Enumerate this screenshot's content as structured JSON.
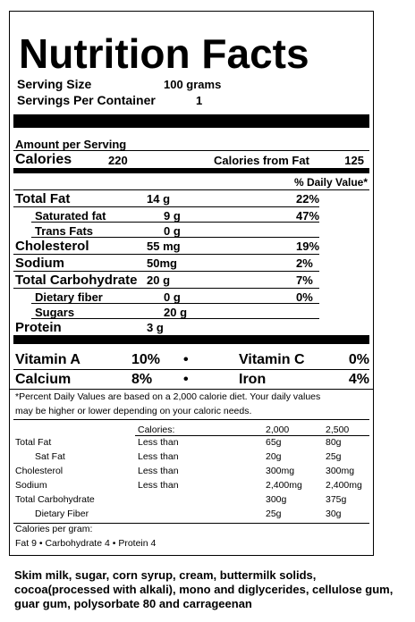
{
  "title": "Nutrition Facts",
  "serving": [
    {
      "label": "Serving Size",
      "value": "100 grams"
    },
    {
      "label": "Servings Per Container",
      "value": "1"
    }
  ],
  "amount_per_serving": "Amount per Serving",
  "calories": {
    "label": "Calories",
    "value": "220",
    "fat_label": "Calories from Fat",
    "fat_value": "125"
  },
  "daily_value_header": "% Daily Value*",
  "nutrients": [
    {
      "label": "Total Fat",
      "amount": "14 g",
      "dv": "22%",
      "sub": [
        {
          "label": "Saturated fat",
          "amount": "9 g",
          "dv": "47%"
        },
        {
          "label": "Trans Fats",
          "amount": "0 g"
        }
      ]
    },
    {
      "label": "Cholesterol",
      "amount": "55 mg",
      "dv": "19%"
    },
    {
      "label": "Sodium",
      "amount": "50mg",
      "dv": "2%"
    },
    {
      "label": "Total Carbohydrate",
      "amount": "20 g",
      "dv": "7%",
      "sub": [
        {
          "label": "Dietary fiber",
          "amount": "0 g",
          "dv": "0%"
        },
        {
          "label": "Sugars",
          "amount": "20 g"
        }
      ]
    },
    {
      "label": "Protein",
      "amount": "3 g"
    }
  ],
  "vitamins": [
    {
      "left": "Vitamin A",
      "left_value": "10%",
      "right": "Vitamin C",
      "right_value": "0%"
    },
    {
      "left": "Calcium",
      "left_value": "8%",
      "right": "Iron",
      "right_value": "4%"
    }
  ],
  "footnote": [
    "*Percent Daily Values are based on a 2,000 calorie diet.  Your daily values",
    "may be higher or lower depending on your caloric needs."
  ],
  "dv_table": {
    "header": "Calories:",
    "columns": [
      "2,000",
      "2,500"
    ],
    "rows": [
      {
        "name": "Total Fat",
        "limit": "Less than",
        "values": [
          "65g",
          "80g"
        ]
      },
      {
        "name": "Sat Fat",
        "limit": "Less than",
        "values": [
          "20g",
          "25g"
        ]
      },
      {
        "name": "Cholesterol",
        "limit": "Less than",
        "values": [
          "300mg",
          "300mg"
        ]
      },
      {
        "name": "Sodium",
        "limit": "Less than",
        "values": [
          "2,400mg",
          "2,400mg"
        ]
      },
      {
        "name": "Total Carbohydrate",
        "values": [
          "300g",
          "375g"
        ]
      },
      {
        "name": "Dietary Fiber",
        "values": [
          "25g",
          "30g"
        ]
      }
    ]
  },
  "calories_per_gram": {
    "label": "Calories per gram:",
    "values": "Fat 9  •  Carbohydrate 4  •  Protein 4"
  },
  "ingredients": "Skim milk, sugar, corn syrup, cream, buttermilk solids, cocoa(processed with alkali), mono and diglycerides, cellulose gum, guar gum, polysorbate 80 and carrageenan"
}
